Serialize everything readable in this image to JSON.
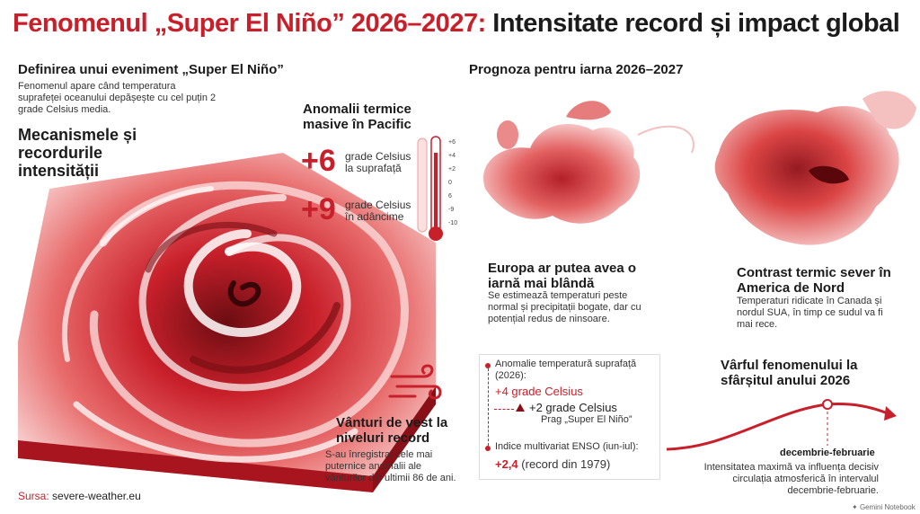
{
  "title": {
    "part1": "Fenomenul „Super El Niño” 2026–2027:",
    "part2": "Intensitate record și impact global"
  },
  "definition": {
    "heading": "Definirea unui eveniment „Super El Niño”",
    "text": "Fenomenul apare când temperatura suprafeței oceanului depășește cu cel puțin 2 grade Celsius media."
  },
  "mechanisms": {
    "heading": "Mecanismele și recordurile intensității"
  },
  "anomalies": {
    "heading": "Anomalii termice masive în Pacific",
    "surface_value": "+6",
    "surface_label": "grade Celsius la suprafață",
    "depth_value": "+9",
    "depth_label": "grade Celsius în adâncime",
    "thermometer_ticks": [
      "+6",
      "+4",
      "+2",
      "0",
      "6",
      "-9",
      "-10"
    ]
  },
  "winds": {
    "heading": "Vânturi de vest la niveluri record",
    "text": "S-au înregistrat cele mai puternice anomalii ale vânturilor din ultimii 86 de ani."
  },
  "source": {
    "label": "Sursa:",
    "value": "severe-weather.eu"
  },
  "forecast": {
    "heading": "Prognoza pentru iarna 2026–2027"
  },
  "europe": {
    "heading": "Europa ar putea avea o iarnă mai blândă",
    "text": "Se estimează temperaturi peste normal și precipitații bogate, dar cu potențial redus de ninsoare."
  },
  "north_america": {
    "heading": "Contrast termic sever în America de Nord",
    "text": "Temperaturi ridicate în Canada și nordul SUA, în timp ce sudul va fi mai rece."
  },
  "callout": {
    "item1_label": "Anomalie temperatură suprafață (2026):",
    "item1_value": "+4 grade Celsius",
    "sub_value": "+2 grade Celsius",
    "sub_label": "Prag „Super El Niño”",
    "item2_label": "Indice multivariat ENSO (iun-iul):",
    "item2_value": "+2,4",
    "item2_note": "(record din 1979)"
  },
  "peak": {
    "heading": "Vârful fenomenului la sfârșitul anului 2026",
    "period": "decembrie-februarie",
    "text": "Intensitatea maximă va influența decisiv circulația atmosferică în intervalul decembrie-februarie."
  },
  "watermark": "Gemini Notebook",
  "colors": {
    "accent": "#c8202b",
    "light_accent": "#f2a3a3",
    "text": "#1b1b1b"
  }
}
